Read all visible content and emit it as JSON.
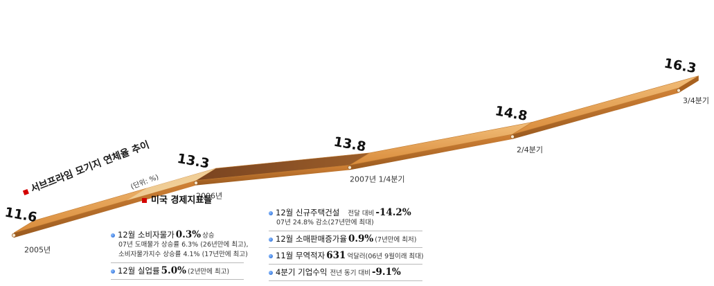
{
  "chart_data": {
    "type": "line",
    "title": "서브프라임 모기지 연체율 추이",
    "unit": "(단위: %)",
    "categories": [
      "2005년",
      "2006년",
      "2007년 1/4분기",
      "2/4분기",
      "3/4분기"
    ],
    "values": [
      11.6,
      13.3,
      13.8,
      14.8,
      16.3
    ],
    "value_labels": [
      "11.6",
      "13.3",
      "13.8",
      "14.8",
      "16.3"
    ],
    "ylim": [
      11,
      17
    ],
    "grid": false
  },
  "indicators": {
    "title": "미국 경제지표들",
    "items": [
      {
        "label": "12월 소비자물가",
        "value": "0.3%",
        "suffix": "상승",
        "notes": [
          "07년 도매물가 상승률 6.3% (26년만에 최고),",
          "소비자물가지수 상승률 4.1% (17년만에 최고)"
        ]
      },
      {
        "label": "12월 실업률",
        "value": "5.0%",
        "suffix": "(2년만에 최고)",
        "notes": []
      },
      {
        "label": "12월 신규주택건설",
        "pre": "전달 대비",
        "value": "-14.2%",
        "suffix": "",
        "notes": [
          "07년 24.8% 감소(27년만에 최대)"
        ]
      },
      {
        "label": "12월 소매판매증가율",
        "value": "0.9%",
        "suffix": "(7년만에 최저)",
        "notes": []
      },
      {
        "label": "11월 무역적자",
        "value": "631",
        "suffix": "억달러(06년 9월이래 최대)",
        "notes": []
      },
      {
        "label": "4분기 기업수익",
        "pre": "전년 동기 대비",
        "value": "-9.1%",
        "suffix": "",
        "notes": []
      }
    ]
  },
  "colors": {
    "ribbon_top": "#e3a052",
    "ribbon_side": "#b56a1f",
    "ribbon_dark": "#8a4f22",
    "accent": "#d40000"
  }
}
